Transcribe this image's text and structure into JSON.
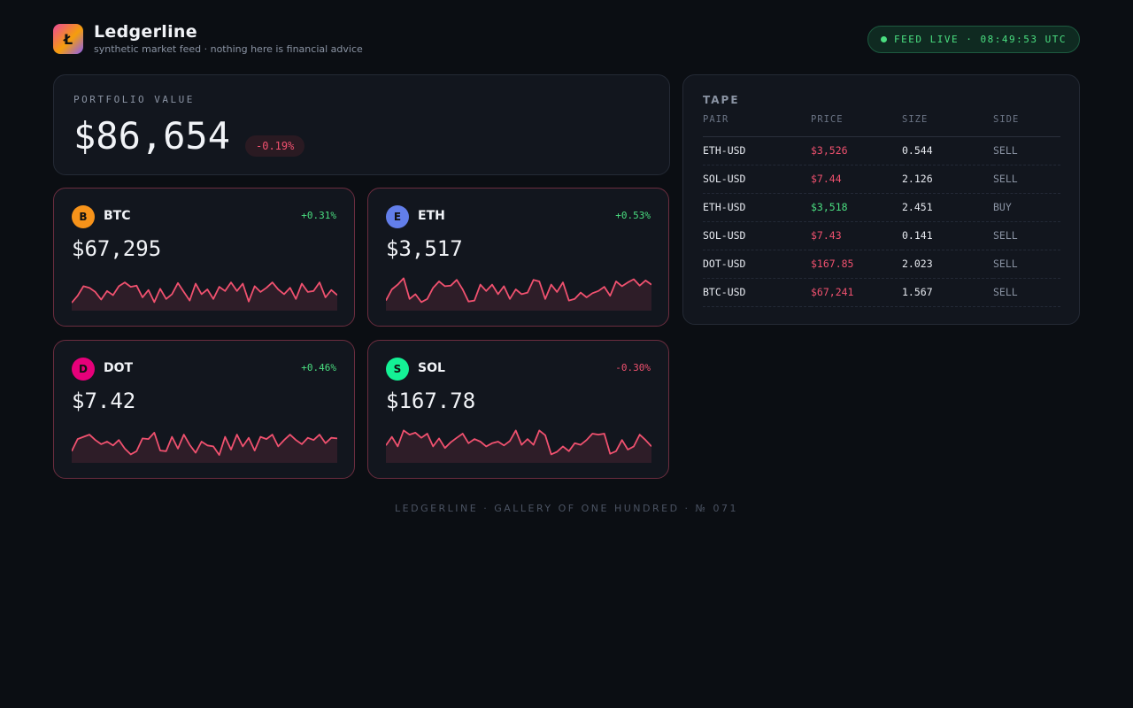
{
  "header": {
    "logo_glyph": "Ł",
    "brand": "Ledgerline",
    "tagline": "synthetic market feed · nothing here is financial advice",
    "feed_status": "FEED LIVE · 08:49:53 UTC"
  },
  "portfolio": {
    "label": "PORTFOLIO VALUE",
    "value": "$86,654",
    "change": "-0.19%"
  },
  "coins": [
    {
      "badge": "B",
      "symbol": "BTC",
      "change": "+0.31%",
      "price": "$67,295",
      "badge_color": "#f7931a"
    },
    {
      "badge": "E",
      "symbol": "ETH",
      "change": "+0.53%",
      "price": "$3,517",
      "badge_color": "#627eea"
    },
    {
      "badge": "D",
      "symbol": "DOT",
      "change": "+0.46%",
      "price": "$7.42",
      "badge_color": "#e6007a"
    },
    {
      "badge": "S",
      "symbol": "SOL",
      "change": "-0.30%",
      "price": "$167.78",
      "badge_color": "#14f195"
    }
  ],
  "sparkline_color": "#f0516f",
  "sparklines": [
    [
      0.08,
      0.3,
      0.6,
      0.55,
      0.42,
      0.18,
      0.45,
      0.32,
      0.6,
      0.72,
      0.58,
      0.62,
      0.25,
      0.48,
      0.1,
      0.52,
      0.2,
      0.35,
      0.7,
      0.42,
      0.15,
      0.68,
      0.35,
      0.5,
      0.2,
      0.58,
      0.45,
      0.72,
      0.45,
      0.68,
      0.12,
      0.6,
      0.42,
      0.55,
      0.72,
      0.5,
      0.35,
      0.55,
      0.2,
      0.68,
      0.42,
      0.45,
      0.72,
      0.25,
      0.48,
      0.32
    ],
    [
      0.15,
      0.5,
      0.65,
      0.85,
      0.2,
      0.35,
      0.1,
      0.2,
      0.55,
      0.75,
      0.6,
      0.62,
      0.8,
      0.5,
      0.12,
      0.15,
      0.65,
      0.45,
      0.65,
      0.35,
      0.6,
      0.2,
      0.5,
      0.35,
      0.4,
      0.8,
      0.75,
      0.2,
      0.65,
      0.42,
      0.72,
      0.15,
      0.2,
      0.4,
      0.25,
      0.38,
      0.45,
      0.58,
      0.3,
      0.75,
      0.6,
      0.72,
      0.82,
      0.62,
      0.78,
      0.65
    ],
    [
      0.2,
      0.58,
      0.65,
      0.72,
      0.55,
      0.42,
      0.5,
      0.38,
      0.55,
      0.28,
      0.1,
      0.2,
      0.6,
      0.58,
      0.78,
      0.22,
      0.2,
      0.65,
      0.28,
      0.72,
      0.4,
      0.15,
      0.5,
      0.38,
      0.35,
      0.08,
      0.65,
      0.25,
      0.72,
      0.35,
      0.62,
      0.22,
      0.65,
      0.58,
      0.72,
      0.35,
      0.55,
      0.72,
      0.55,
      0.42,
      0.62,
      0.55,
      0.72,
      0.45,
      0.62,
      0.6
    ],
    [
      0.38,
      0.65,
      0.35,
      0.85,
      0.72,
      0.78,
      0.62,
      0.75,
      0.35,
      0.6,
      0.3,
      0.48,
      0.62,
      0.75,
      0.45,
      0.58,
      0.5,
      0.35,
      0.45,
      0.5,
      0.38,
      0.52,
      0.85,
      0.4,
      0.58,
      0.4,
      0.85,
      0.7,
      0.1,
      0.18,
      0.35,
      0.2,
      0.45,
      0.4,
      0.55,
      0.75,
      0.72,
      0.75,
      0.12,
      0.2,
      0.55,
      0.25,
      0.35,
      0.72,
      0.55,
      0.35
    ]
  ],
  "tape": {
    "title": "TAPE",
    "columns": [
      "PAIR",
      "PRICE",
      "SIZE",
      "SIDE"
    ],
    "rows": [
      {
        "pair": "ETH-USD",
        "price": "$3,526",
        "size": "0.544",
        "side": "SELL"
      },
      {
        "pair": "SOL-USD",
        "price": "$7.44",
        "size": "2.126",
        "side": "SELL"
      },
      {
        "pair": "ETH-USD",
        "price": "$3,518",
        "size": "2.451",
        "side": "BUY"
      },
      {
        "pair": "SOL-USD",
        "price": "$7.43",
        "size": "0.141",
        "side": "SELL"
      },
      {
        "pair": "DOT-USD",
        "price": "$167.85",
        "size": "2.023",
        "side": "SELL"
      },
      {
        "pair": "BTC-USD",
        "price": "$67,241",
        "size": "1.567",
        "side": "SELL"
      }
    ]
  },
  "colors": {
    "up": "#4ade80",
    "down": "#f0516f",
    "background": "#0b0e13"
  },
  "footer": "LEDGERLINE · GALLERY OF ONE HUNDRED · № 071"
}
